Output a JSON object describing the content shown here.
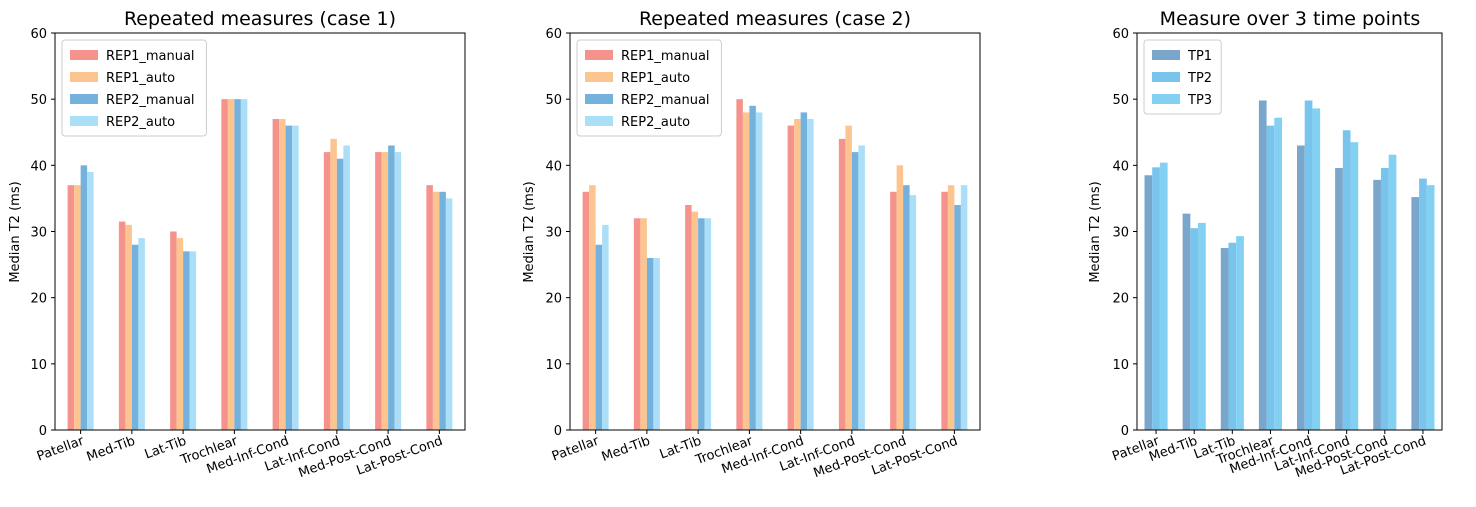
{
  "colors": {
    "REP1_manual": "#f4928b",
    "REP1_auto": "#fcc58f",
    "REP2_manual": "#74b1dc",
    "REP2_auto": "#aadff7",
    "TP1": "#7aa6cc",
    "TP2": "#79c4ec",
    "TP3": "#82d1f3"
  },
  "chart_data": [
    {
      "type": "bar",
      "title": "Repeated measures (case 1)",
      "xlabel": "",
      "ylabel": "Median T2 (ms)",
      "ylim": [
        0,
        60
      ],
      "yticks": [
        "0",
        "10",
        "20",
        "30",
        "40",
        "50",
        "60"
      ],
      "legend": "top-left",
      "categories": [
        "Patellar",
        "Med-Tib",
        "Lat-Tib",
        "Trochlear",
        "Med-Inf-Cond",
        "Lat-Inf-Cond",
        "Med-Post-Cond",
        "Lat-Post-Cond"
      ],
      "series": [
        {
          "name": "REP1_manual",
          "values": [
            37,
            31.5,
            30,
            50,
            47,
            42,
            42,
            37
          ]
        },
        {
          "name": "REP1_auto",
          "values": [
            37,
            31,
            29,
            50,
            47,
            44,
            42,
            36
          ]
        },
        {
          "name": "REP2_manual",
          "values": [
            40,
            28,
            27,
            50,
            46,
            41,
            43,
            36
          ]
        },
        {
          "name": "REP2_auto",
          "values": [
            39,
            29,
            27,
            50,
            46,
            43,
            42,
            35
          ]
        }
      ]
    },
    {
      "type": "bar",
      "title": "Repeated measures (case 2)",
      "xlabel": "",
      "ylabel": "Median T2 (ms)",
      "ylim": [
        0,
        60
      ],
      "yticks": [
        "0",
        "10",
        "20",
        "30",
        "40",
        "50",
        "60"
      ],
      "legend": "top-left",
      "categories": [
        "Patellar",
        "Med-Tib",
        "Lat-Tib",
        "Trochlear",
        "Med-Inf-Cond",
        "Lat-Inf-Cond",
        "Med-Post-Cond",
        "Lat-Post-Cond"
      ],
      "series": [
        {
          "name": "REP1_manual",
          "values": [
            36,
            32,
            34,
            50,
            46,
            44,
            36,
            36
          ]
        },
        {
          "name": "REP1_auto",
          "values": [
            37,
            32,
            33,
            48,
            47,
            46,
            40,
            37
          ]
        },
        {
          "name": "REP2_manual",
          "values": [
            28,
            26,
            32,
            49,
            48,
            42,
            37,
            34
          ]
        },
        {
          "name": "REP2_auto",
          "values": [
            31,
            26,
            32,
            48,
            47,
            43,
            35.5,
            37
          ]
        }
      ]
    },
    {
      "type": "bar",
      "title": "Measure over 3 time points",
      "xlabel": "",
      "ylabel": "Median T2 (ms)",
      "ylim": [
        0,
        60
      ],
      "yticks": [
        "0",
        "10",
        "20",
        "30",
        "40",
        "50",
        "60"
      ],
      "legend": "top-left",
      "categories": [
        "Patellar",
        "Med-Tib",
        "Lat-Tib",
        "Trochlear",
        "Med-Inf-Cond",
        "Lat-Inf-Cond",
        "Med-Post-Cond",
        "Lat-Post-Cond"
      ],
      "series": [
        {
          "name": "TP1",
          "values": [
            38.5,
            32.7,
            27.5,
            49.8,
            43,
            39.6,
            37.8,
            35.2
          ]
        },
        {
          "name": "TP2",
          "values": [
            39.7,
            30.5,
            28.3,
            46,
            49.8,
            45.3,
            39.6,
            38
          ]
        },
        {
          "name": "TP3",
          "values": [
            40.4,
            31.3,
            29.3,
            47.2,
            48.6,
            43.5,
            41.6,
            37
          ]
        }
      ]
    }
  ]
}
